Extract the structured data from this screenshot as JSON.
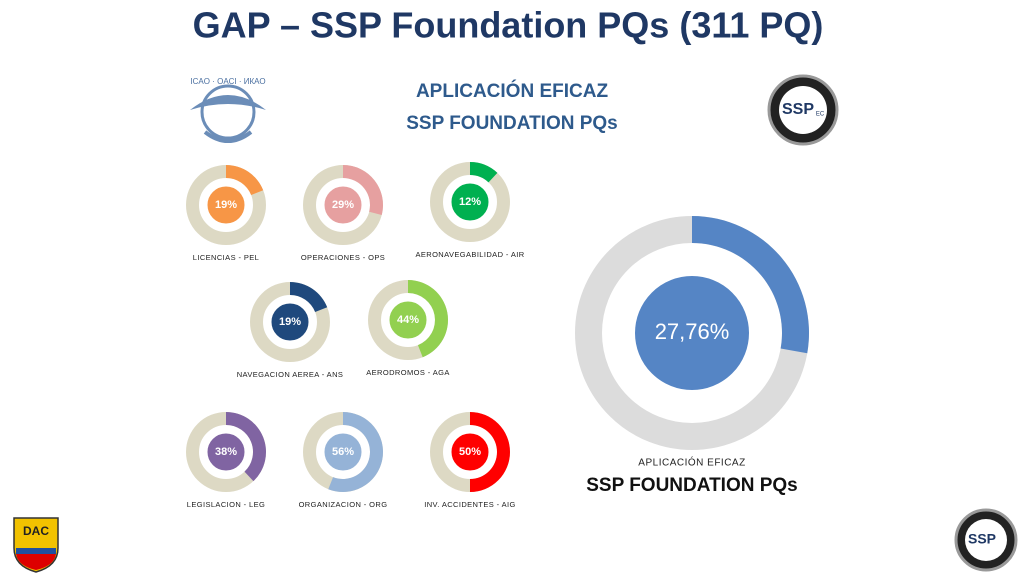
{
  "title": "GAP – SSP Foundation PQs (311 PQ)",
  "header": {
    "line1": "APLICACIÓN EFICAZ",
    "line2": "SSP FOUNDATION PQs"
  },
  "logos": {
    "icao": "ICAO · OACI · ИКАО",
    "ssp": "SSP",
    "ssp_suffix": "EC",
    "dac": "DAC"
  },
  "chart_data": [
    {
      "type": "donut",
      "title": "LICENCIAS - PEL",
      "values": [
        19
      ],
      "value_labels": [
        "19%"
      ],
      "color": "#f79646"
    },
    {
      "type": "donut",
      "title": "OPERACIONES - OPS",
      "values": [
        29
      ],
      "value_labels": [
        "29%"
      ],
      "color": "#e6a0a0"
    },
    {
      "type": "donut",
      "title": "AERONAVEGABILIDAD - AIR",
      "values": [
        12
      ],
      "value_labels": [
        "12%"
      ],
      "color": "#00b050"
    },
    {
      "type": "donut",
      "title": "NAVEGACION AEREA - ANS",
      "values": [
        19
      ],
      "value_labels": [
        "19%"
      ],
      "color": "#1f497d"
    },
    {
      "type": "donut",
      "title": "AERODROMOS - AGA",
      "values": [
        44
      ],
      "value_labels": [
        "44%"
      ],
      "color": "#92d050"
    },
    {
      "type": "donut",
      "title": "LEGISLACION - LEG",
      "values": [
        38
      ],
      "value_labels": [
        "38%"
      ],
      "color": "#8064a2"
    },
    {
      "type": "donut",
      "title": "ORGANIZACION - ORG",
      "values": [
        56
      ],
      "value_labels": [
        "56%"
      ],
      "color": "#95b3d7"
    },
    {
      "type": "donut",
      "title": "INV. ACCIDENTES - AIG",
      "values": [
        50
      ],
      "value_labels": [
        "50%"
      ],
      "color": "#ff0000"
    },
    {
      "type": "donut",
      "subtitle": "APLICACIÓN EFICAZ",
      "title": "SSP FOUNDATION PQs",
      "values": [
        27.76
      ],
      "value_labels": [
        "27,76%"
      ],
      "color": "#5585c5"
    }
  ]
}
